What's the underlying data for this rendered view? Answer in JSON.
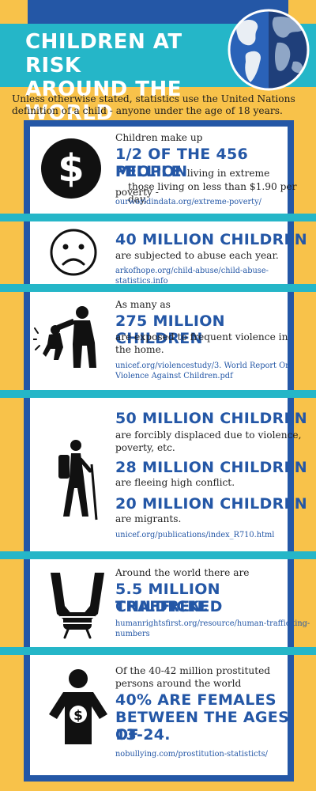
{
  "header": {
    "title_line1": "CHILDREN AT RISK",
    "title_line2": "AROUND THE WORLD"
  },
  "intro": "Unless otherwise stated, statistics use the United Nations definition of a child - anyone under the age of 18 years.",
  "colors": {
    "background": "#f8c24a",
    "blue": "#2457a6",
    "teal": "#25b6c8",
    "card": "#ffffff"
  },
  "sections": [
    {
      "icon": "dollar-circle-icon",
      "lead": "Children make up",
      "headline_line1": "1/2 OF THE 456 MILLION",
      "headline_line2": "PEOPLE",
      "body_inline": "living in extreme poverty -",
      "body_line2": "those living on less than $1.90 per day.",
      "source": "ourworldindata.org/extreme-poverty/"
    },
    {
      "icon": "sad-face-icon",
      "headline": "40 MILLION CHILDREN",
      "body": "are subjected to abuse each year.",
      "source": "arkofhope.org/child-abuse/child-abuse-statistics.info"
    },
    {
      "icon": "violence-icon",
      "lead": "As many as",
      "headline": "275 MILLION CHILDREN",
      "body_line1": "are exposed to frequent violence in",
      "body_line2": "the home.",
      "source_line1": "unicef.org/violencestudy/3. World Report On",
      "source_line2": "Violence Against Children.pdf"
    },
    {
      "icon": "hiker-icon",
      "headline1": "50 MILLION CHILDREN",
      "body1_line1": "are forcibly displaced due to violence,",
      "body1_line2": "poverty, etc.",
      "headline2": "28 MILLION CHILDREN",
      "body2": "are fleeing high conflict.",
      "headline3": "20 MILLION CHILDREN",
      "body3": "are migrants.",
      "source": "unicef.org/publications/index_R710.html"
    },
    {
      "icon": "bound-hands-icon",
      "lead": "Around the world there are",
      "headline_line1": "5.5 MILLION TRAFFICKED",
      "headline_line2": "CHILDREN.",
      "source_line1": "humanrightsfirst.org/resource/human-trafficking-",
      "source_line2": "numbers"
    },
    {
      "icon": "person-money-icon",
      "lead_line1": "Of the 40-42 million prostituted",
      "lead_line2": "persons around the world",
      "headline_line1": "40% ARE FEMALES",
      "headline_line2": "BETWEEN THE AGES OF",
      "headline_line3": "13-24.",
      "source": "nobullying.com/prostitution-statisticts/"
    }
  ]
}
